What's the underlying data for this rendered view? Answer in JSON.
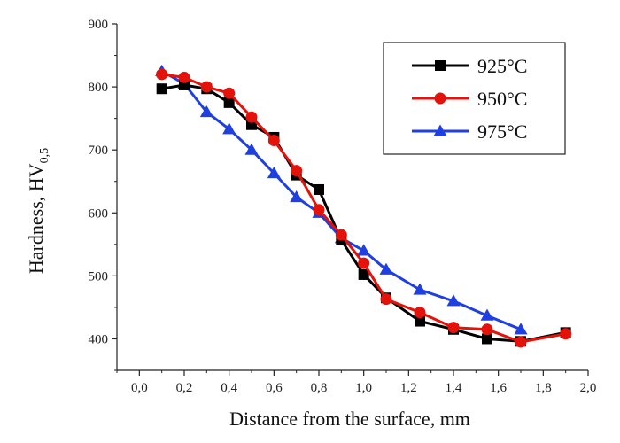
{
  "chart_data": {
    "type": "line",
    "title": "",
    "xlabel": "Distance from the surface, mm",
    "ylabel_main": "Hardness, HV",
    "ylabel_sub": "0,5",
    "xlim": [
      -0.1,
      2.0
    ],
    "ylim": [
      350,
      900
    ],
    "x_ticks": [
      0.0,
      0.2,
      0.4,
      0.6,
      0.8,
      1.0,
      1.2,
      1.4,
      1.6,
      1.8,
      2.0
    ],
    "x_tick_labels": [
      "0,0",
      "0,2",
      "0,4",
      "0,6",
      "0,8",
      "1,0",
      "1,2",
      "1,4",
      "1,6",
      "1,8",
      "2,0"
    ],
    "y_ticks": [
      400,
      500,
      600,
      700,
      800,
      900
    ],
    "y_tick_labels": [
      "400",
      "500",
      "600",
      "700",
      "800",
      "900"
    ],
    "grid": false,
    "legend_position": "top-right",
    "series": [
      {
        "name": "925°C",
        "color": "#000000",
        "marker": "square",
        "x": [
          0.1,
          0.2,
          0.3,
          0.4,
          0.5,
          0.6,
          0.7,
          0.8,
          0.9,
          1.0,
          1.1,
          1.25,
          1.4,
          1.55,
          1.7,
          1.9
        ],
        "y": [
          797,
          803,
          797,
          775,
          740,
          720,
          660,
          637,
          557,
          502,
          465,
          428,
          415,
          400,
          396,
          410
        ]
      },
      {
        "name": "950°C",
        "color": "#e3120b",
        "marker": "circle",
        "x": [
          0.1,
          0.2,
          0.3,
          0.4,
          0.5,
          0.6,
          0.7,
          0.8,
          0.9,
          1.0,
          1.1,
          1.25,
          1.4,
          1.55,
          1.7,
          1.9
        ],
        "y": [
          820,
          815,
          800,
          790,
          752,
          715,
          667,
          605,
          565,
          520,
          463,
          442,
          418,
          415,
          395,
          408
        ]
      },
      {
        "name": "975°C",
        "color": "#1f3fe0",
        "marker": "triangle",
        "x": [
          0.1,
          0.2,
          0.3,
          0.4,
          0.5,
          0.6,
          0.7,
          0.8,
          0.9,
          1.0,
          1.1,
          1.25,
          1.4,
          1.55,
          1.7
        ],
        "y": [
          825,
          805,
          760,
          733,
          700,
          663,
          625,
          600,
          560,
          540,
          510,
          478,
          460,
          437,
          415
        ]
      }
    ]
  }
}
